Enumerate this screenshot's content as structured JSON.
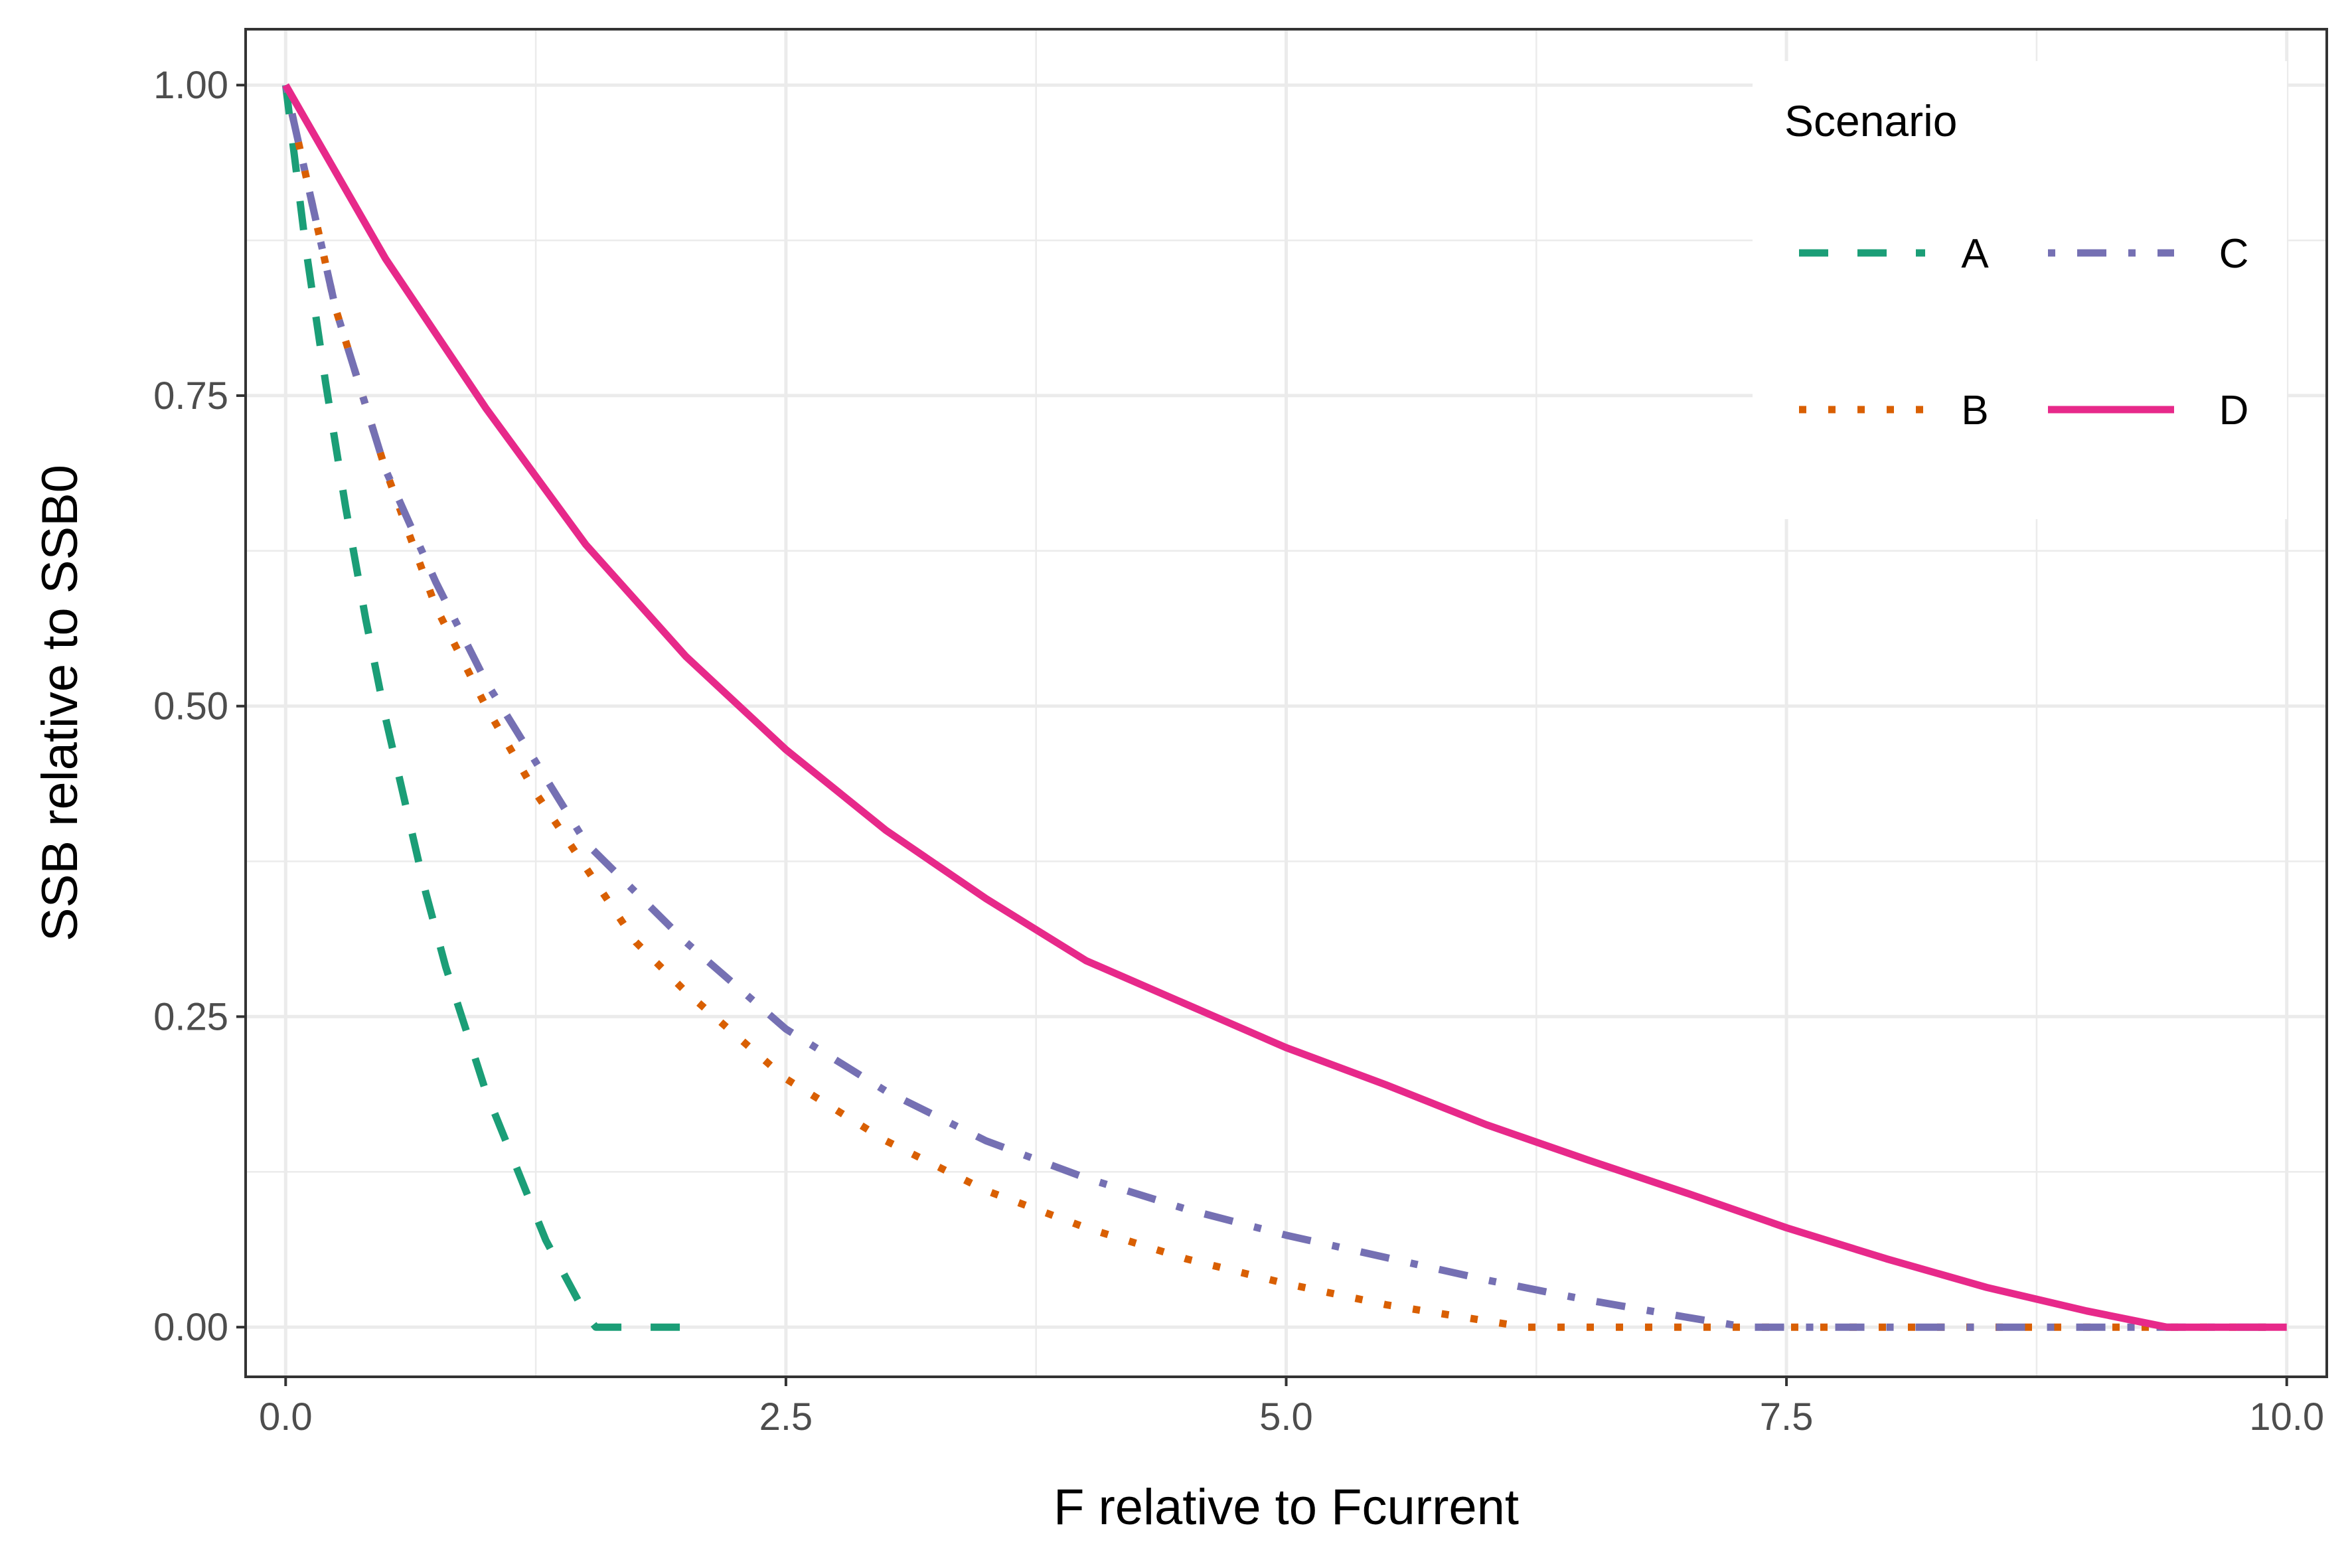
{
  "chart_data": {
    "type": "line",
    "title": "",
    "xlabel": "F relative to Fcurrent",
    "ylabel": "SSB relative to SSB0",
    "xlim": [
      -0.2,
      10.2
    ],
    "ylim": [
      -0.04,
      1.045
    ],
    "x_ticks": [
      0.0,
      2.5,
      5.0,
      7.5,
      10.0
    ],
    "x_tick_labels": [
      "0.0",
      "2.5",
      "5.0",
      "7.5",
      "10.0"
    ],
    "y_ticks": [
      0.0,
      0.25,
      0.5,
      0.75,
      1.0
    ],
    "y_tick_labels": [
      "0.00",
      "0.25",
      "0.50",
      "0.75",
      "1.00"
    ],
    "grid": true,
    "legend": {
      "title": "Scenario",
      "position": "top-right",
      "columns": 2
    },
    "series": [
      {
        "name": "A",
        "color": "#1b9e77",
        "linetype": "dashed",
        "x": [
          0,
          0.1,
          0.2,
          0.3,
          0.4,
          0.5,
          0.6,
          0.7,
          0.8,
          0.9,
          1.0,
          1.1,
          1.2,
          1.3,
          1.4,
          1.5,
          1.55,
          2.0
        ],
        "y": [
          1.0,
          0.87,
          0.76,
          0.66,
          0.57,
          0.49,
          0.42,
          0.35,
          0.29,
          0.24,
          0.19,
          0.15,
          0.11,
          0.07,
          0.04,
          0.01,
          0.0,
          0.0
        ]
      },
      {
        "name": "B",
        "color": "#d95f02",
        "linetype": "dotted",
        "x": [
          0,
          0.25,
          0.5,
          0.75,
          1.0,
          1.25,
          1.5,
          1.75,
          2.0,
          2.5,
          3.0,
          3.5,
          4.0,
          4.5,
          5.0,
          5.5,
          6.0,
          6.2,
          7.0,
          8.0,
          9.0,
          10.0
        ],
        "y": [
          1.0,
          0.82,
          0.69,
          0.58,
          0.5,
          0.43,
          0.37,
          0.31,
          0.27,
          0.2,
          0.15,
          0.11,
          0.08,
          0.055,
          0.035,
          0.018,
          0.005,
          0.0,
          0.0,
          0.0,
          0.0,
          0.0
        ]
      },
      {
        "name": "C",
        "color": "#7570b3",
        "linetype": "dotdash",
        "x": [
          0,
          0.25,
          0.5,
          0.75,
          1.0,
          1.5,
          2.0,
          2.5,
          3.0,
          3.5,
          4.0,
          4.5,
          5.0,
          5.5,
          6.0,
          6.5,
          7.0,
          7.3,
          8.0,
          9.0,
          10.0
        ],
        "y": [
          1.0,
          0.82,
          0.69,
          0.6,
          0.52,
          0.39,
          0.31,
          0.24,
          0.19,
          0.15,
          0.12,
          0.095,
          0.074,
          0.056,
          0.038,
          0.022,
          0.008,
          0.0,
          0.0,
          0.0,
          0.0
        ]
      },
      {
        "name": "D",
        "color": "#e7298a",
        "linetype": "solid",
        "x": [
          0,
          0.5,
          1.0,
          1.5,
          2.0,
          2.5,
          3.0,
          3.5,
          4.0,
          4.5,
          5.0,
          5.5,
          6.0,
          6.5,
          7.0,
          7.5,
          8.0,
          8.5,
          9.0,
          9.4,
          10.0
        ],
        "y": [
          1.0,
          0.86,
          0.74,
          0.63,
          0.54,
          0.465,
          0.4,
          0.345,
          0.295,
          0.26,
          0.225,
          0.195,
          0.163,
          0.135,
          0.108,
          0.08,
          0.055,
          0.032,
          0.013,
          0.0,
          0.0
        ]
      }
    ]
  }
}
